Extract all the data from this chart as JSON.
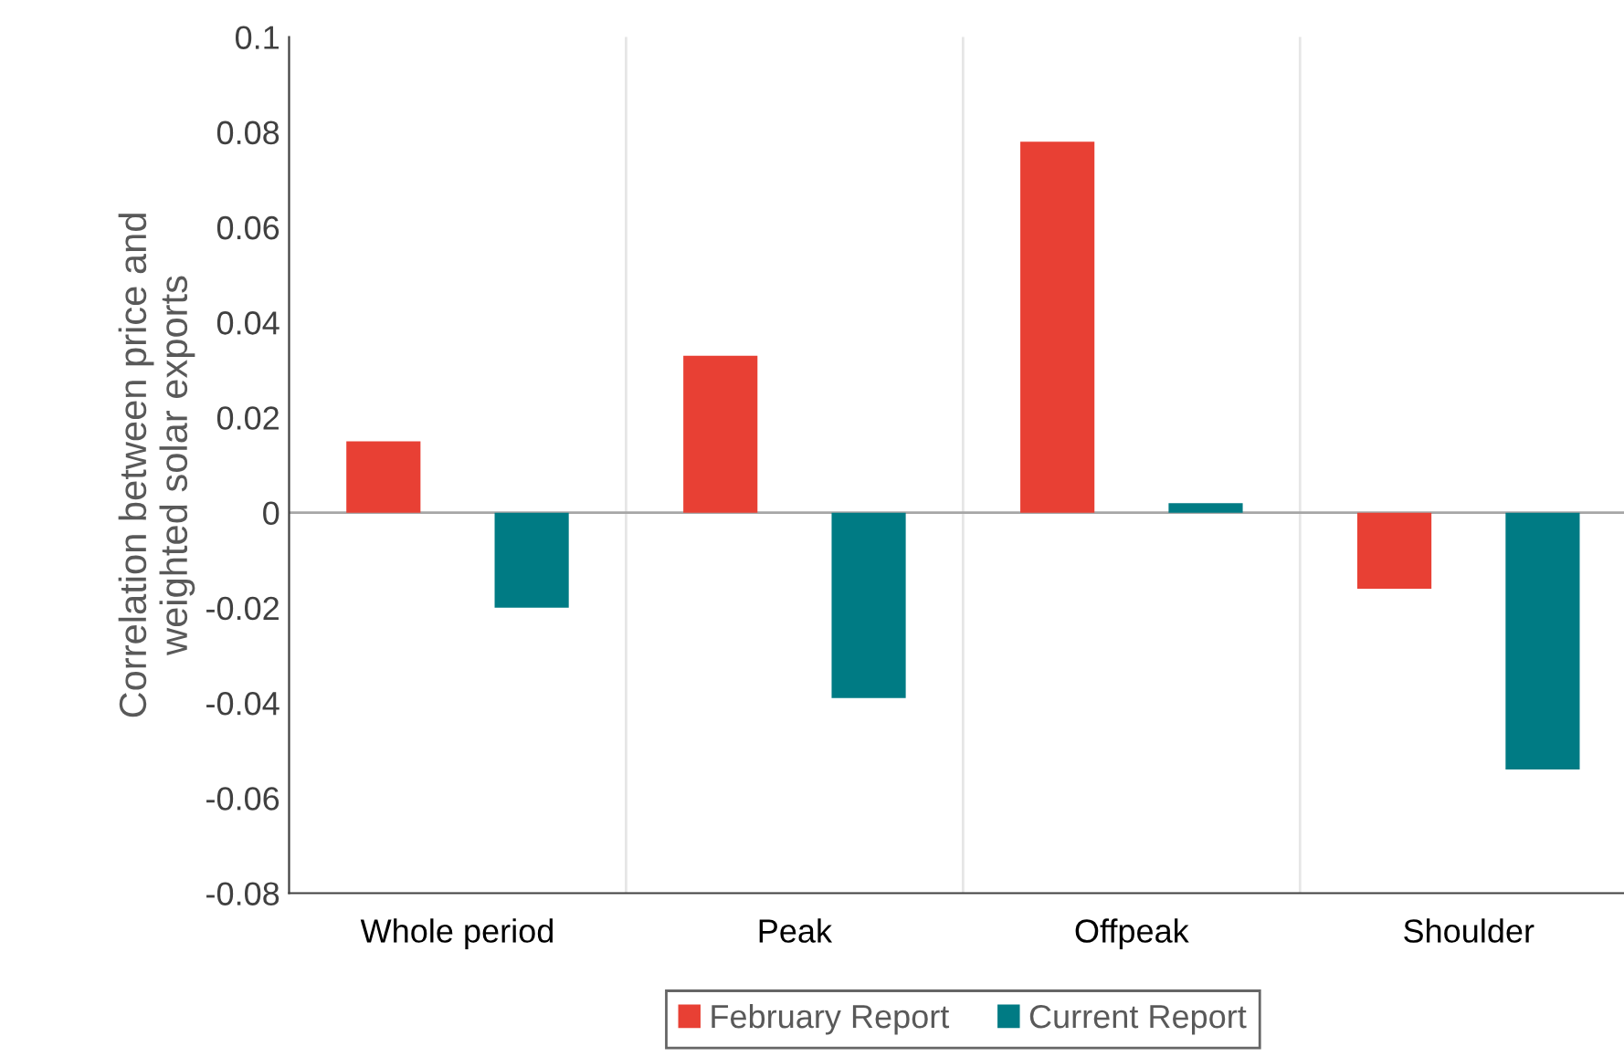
{
  "chart_data": {
    "type": "bar",
    "ylabel": "Correlation between price and\nweighted solar exports",
    "categories": [
      "Whole period",
      "Peak",
      "Offpeak",
      "Shoulder"
    ],
    "series": [
      {
        "name": "February Report",
        "color": "#e84034",
        "values": [
          0.015,
          0.033,
          0.078,
          -0.016
        ]
      },
      {
        "name": "Current Report",
        "color": "#007b84",
        "values": [
          -0.02,
          -0.039,
          0.002,
          -0.054
        ]
      }
    ],
    "ylim": [
      -0.08,
      0.1
    ],
    "yticks": [
      {
        "value": -0.08,
        "label": "-0.08"
      },
      {
        "value": -0.06,
        "label": "-0.06"
      },
      {
        "value": -0.04,
        "label": "-0.04"
      },
      {
        "value": -0.02,
        "label": "-0.02"
      },
      0,
      0.02,
      0.04,
      0.06,
      0.08,
      0.1
    ],
    "ref_lines": [
      {
        "axis": "y",
        "value": 0,
        "color": "#a6a6a6"
      }
    ],
    "grid": "x",
    "legend": "bottom"
  }
}
